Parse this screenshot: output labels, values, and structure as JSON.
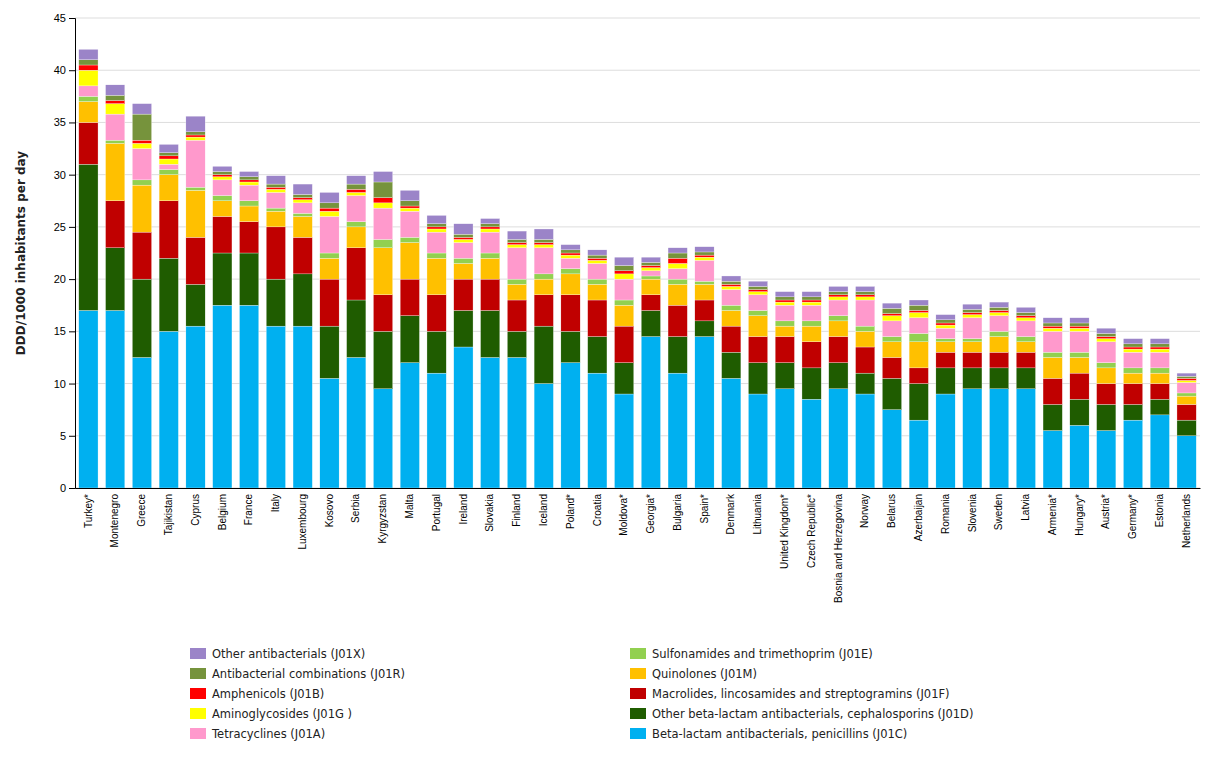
{
  "chart_data": {
    "type": "bar",
    "stacked": true,
    "grid": true,
    "legend": "bottom",
    "ylabel": "DDD/1000 inhabitants per day",
    "ylim": [
      0,
      45
    ],
    "yticks": [
      0,
      5,
      10,
      15,
      20,
      25,
      30,
      35,
      40,
      45
    ],
    "categories": [
      "Turkey*",
      "Montenegro",
      "Greece",
      "Tajikistan",
      "Cyprus",
      "Belgium",
      "France",
      "Italy",
      "Luxembourg",
      "Kosovo",
      "Serbia",
      "Kyrgyzstan",
      "Malta",
      "Portugal",
      "Ireland",
      "Slovakia",
      "Finland",
      "Iceland",
      "Poland*",
      "Croatia",
      "Moldova*",
      "Georgia*",
      "Bulgaria",
      "Spain*",
      "Denmark",
      "Lithuania",
      "United Kingdom*",
      "Czech Republic*",
      "Bosnia and Herzegovina",
      "Norway",
      "Belarus",
      "Azerbaijan",
      "Romania",
      "Slovenia",
      "Sweden",
      "Latvia",
      "Armenia*",
      "Hungary*",
      "Austria*",
      "Germany*",
      "Estonia",
      "Netherlands"
    ],
    "series": [
      {
        "name": "Beta-lactam antibacterials, penicillins (J01C)",
        "color": "#00B0F0",
        "values": [
          17.0,
          17.0,
          12.5,
          15.0,
          15.5,
          17.5,
          17.5,
          15.5,
          15.5,
          10.5,
          12.5,
          9.5,
          12.0,
          11.0,
          13.5,
          12.5,
          12.5,
          10.0,
          12.0,
          11.0,
          9.0,
          14.5,
          11.0,
          14.5,
          10.5,
          9.0,
          9.5,
          8.5,
          9.5,
          9.0,
          7.5,
          6.5,
          9.0,
          9.5,
          9.5,
          9.5,
          5.5,
          6.0,
          5.5,
          6.5,
          7.0,
          5.0
        ]
      },
      {
        "name": "Other beta-lactam antibacterials, cephalosporins (J01D)",
        "color": "#1F5C00",
        "values": [
          14.0,
          6.0,
          7.5,
          7.0,
          4.0,
          5.0,
          5.0,
          4.5,
          5.0,
          5.0,
          5.5,
          5.5,
          4.5,
          4.0,
          3.5,
          4.5,
          2.5,
          5.5,
          3.0,
          3.5,
          3.0,
          2.5,
          3.5,
          1.5,
          2.5,
          3.0,
          2.5,
          3.0,
          2.5,
          2.0,
          3.0,
          3.5,
          2.5,
          2.0,
          2.0,
          2.0,
          2.5,
          2.5,
          2.5,
          1.5,
          1.5,
          1.5
        ]
      },
      {
        "name": "Macrolides, lincosamides and streptogramins (J01F)",
        "color": "#C00000",
        "values": [
          4.0,
          4.5,
          4.5,
          5.5,
          4.5,
          3.5,
          3.0,
          5.0,
          3.5,
          4.5,
          5.0,
          3.5,
          3.5,
          3.5,
          3.0,
          3.0,
          3.0,
          3.0,
          3.5,
          3.5,
          3.5,
          1.5,
          3.0,
          2.0,
          2.5,
          2.5,
          2.5,
          2.5,
          2.5,
          2.5,
          2.0,
          1.5,
          1.5,
          1.5,
          1.5,
          1.5,
          2.5,
          2.5,
          2.0,
          2.0,
          1.5,
          1.5
        ]
      },
      {
        "name": "Quinolones (J01M)",
        "color": "#FFC000",
        "values": [
          2.0,
          5.5,
          4.5,
          2.5,
          4.5,
          1.5,
          1.5,
          1.5,
          2.0,
          2.0,
          2.0,
          4.5,
          3.5,
          3.5,
          1.5,
          2.0,
          1.5,
          1.5,
          2.0,
          1.5,
          2.0,
          1.5,
          2.0,
          1.5,
          1.5,
          2.0,
          1.0,
          1.5,
          1.5,
          1.5,
          1.5,
          2.5,
          1.0,
          1.0,
          1.5,
          1.0,
          2.0,
          1.5,
          1.5,
          1.0,
          1.0,
          0.8
        ]
      },
      {
        "name": "Sulfonamides and trimethoprim (J01E)",
        "color": "#92D050",
        "values": [
          0.5,
          0.3,
          0.5,
          0.5,
          0.3,
          0.5,
          0.5,
          0.3,
          0.3,
          0.5,
          0.5,
          0.8,
          0.5,
          0.5,
          0.5,
          0.5,
          0.5,
          0.5,
          0.5,
          0.5,
          0.5,
          0.3,
          0.5,
          0.3,
          0.5,
          0.5,
          0.5,
          0.5,
          0.5,
          0.5,
          0.5,
          0.8,
          0.3,
          0.3,
          0.5,
          0.5,
          0.5,
          0.5,
          0.5,
          0.5,
          0.5,
          0.3
        ]
      },
      {
        "name": "Tetracyclines (J01A)",
        "color": "#FF99CC",
        "values": [
          1.0,
          2.5,
          3.0,
          0.5,
          4.5,
          1.5,
          1.5,
          1.5,
          1.0,
          3.5,
          2.5,
          3.0,
          2.5,
          2.0,
          1.5,
          2.0,
          3.0,
          2.5,
          1.0,
          1.5,
          2.0,
          0.5,
          1.0,
          2.0,
          1.5,
          1.5,
          1.5,
          1.5,
          1.5,
          2.5,
          1.5,
          1.5,
          1.0,
          2.0,
          1.5,
          1.5,
          2.0,
          2.0,
          2.0,
          1.5,
          1.5,
          1.0
        ]
      },
      {
        "name": "Aminoglycosides (J01G )",
        "color": "#FFFF00",
        "values": [
          1.5,
          1.0,
          0.5,
          0.5,
          0.3,
          0.3,
          0.3,
          0.3,
          0.3,
          0.5,
          0.3,
          0.5,
          0.3,
          0.3,
          0.3,
          0.3,
          0.3,
          0.3,
          0.3,
          0.3,
          0.5,
          0.3,
          0.5,
          0.3,
          0.3,
          0.3,
          0.3,
          0.3,
          0.3,
          0.3,
          0.5,
          0.5,
          0.3,
          0.3,
          0.3,
          0.3,
          0.3,
          0.3,
          0.3,
          0.3,
          0.3,
          0.2
        ]
      },
      {
        "name": "Amphenicols (J01B)",
        "color": "#FF0000",
        "values": [
          0.5,
          0.3,
          0.3,
          0.3,
          0.2,
          0.2,
          0.2,
          0.2,
          0.2,
          0.3,
          0.3,
          0.5,
          0.2,
          0.2,
          0.2,
          0.2,
          0.2,
          0.2,
          0.2,
          0.2,
          0.3,
          0.2,
          0.5,
          0.2,
          0.2,
          0.2,
          0.2,
          0.2,
          0.2,
          0.2,
          0.2,
          0.2,
          0.2,
          0.2,
          0.2,
          0.2,
          0.2,
          0.2,
          0.2,
          0.2,
          0.2,
          0.2
        ]
      },
      {
        "name": "Antibacterial combinations (J01R)",
        "color": "#76933C",
        "values": [
          0.5,
          0.5,
          2.5,
          0.3,
          0.3,
          0.3,
          0.3,
          0.3,
          0.3,
          0.5,
          0.5,
          1.5,
          0.5,
          0.3,
          0.3,
          0.3,
          0.3,
          0.3,
          0.3,
          0.3,
          0.5,
          0.3,
          0.5,
          0.3,
          0.3,
          0.3,
          0.3,
          0.3,
          0.3,
          0.3,
          0.5,
          0.5,
          0.3,
          0.3,
          0.3,
          0.3,
          0.3,
          0.3,
          0.3,
          0.3,
          0.3,
          0.2
        ]
      },
      {
        "name": "Other antibacterials (J01X)",
        "color": "#9B84C8",
        "values": [
          1.0,
          1.0,
          1.0,
          0.8,
          1.5,
          0.5,
          0.5,
          0.8,
          1.0,
          1.0,
          0.8,
          1.0,
          1.0,
          0.8,
          1.0,
          0.5,
          0.8,
          1.0,
          0.5,
          0.5,
          0.8,
          0.5,
          0.5,
          0.5,
          0.5,
          0.5,
          0.5,
          0.5,
          0.5,
          0.5,
          0.5,
          0.5,
          0.5,
          0.5,
          0.5,
          0.5,
          0.5,
          0.5,
          0.5,
          0.5,
          0.5,
          0.3
        ]
      }
    ]
  }
}
